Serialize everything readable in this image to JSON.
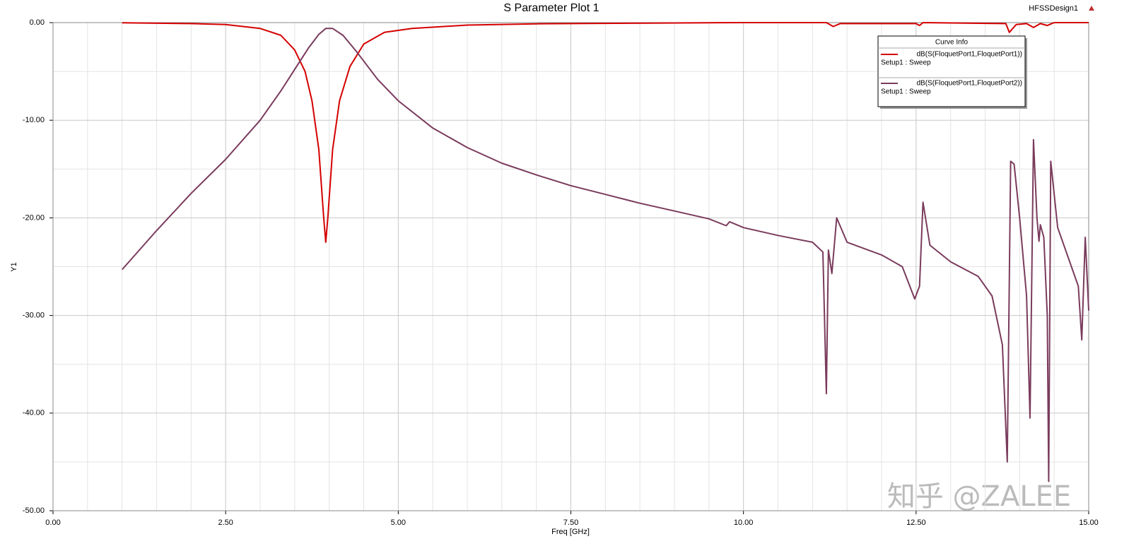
{
  "chart_data": {
    "type": "line",
    "title": "S Parameter Plot 1",
    "design_name": "HFSSDesign1",
    "xlabel": "Freq [GHz]",
    "ylabel": "Y1",
    "legend_title": "Curve Info",
    "legend_position": "top right",
    "watermark": "知乎 @ZALEE",
    "grid": true,
    "xlim": [
      0,
      15
    ],
    "ylim": [
      -50,
      0
    ],
    "xticks": [
      {
        "value": 0,
        "label": "0.00"
      },
      {
        "value": 2.5,
        "label": "2.50"
      },
      {
        "value": 5,
        "label": "5.00"
      },
      {
        "value": 7.5,
        "label": "7.50"
      },
      {
        "value": 10,
        "label": "10.00"
      },
      {
        "value": 12.5,
        "label": "12.50"
      },
      {
        "value": 15,
        "label": "15.00"
      }
    ],
    "yticks": [
      {
        "value": -50,
        "label": "-50.00"
      },
      {
        "value": -40,
        "label": "-40.00"
      },
      {
        "value": -30,
        "label": "-30.00"
      },
      {
        "value": -20,
        "label": "-20.00"
      },
      {
        "value": -10,
        "label": "-10.00"
      },
      {
        "value": 0,
        "label": "0.00"
      }
    ],
    "minor_xticks": [
      0.5,
      1,
      1.5,
      2,
      3,
      3.5,
      4,
      4.5,
      5.5,
      6,
      6.5,
      7,
      8,
      8.5,
      9,
      9.5,
      10.5,
      11,
      11.5,
      12,
      13,
      13.5,
      14,
      14.5
    ],
    "minor_yticks": [
      -45,
      -35,
      -25,
      -15,
      -5
    ],
    "series": [
      {
        "name": "dB(S(FloquetPort1,FloquetPort1))",
        "setup": "Setup1 : Sweep",
        "color": "#d40000",
        "x": [
          1,
          2,
          2.5,
          3,
          3.3,
          3.5,
          3.65,
          3.75,
          3.85,
          3.92,
          3.95,
          3.98,
          4.05,
          4.15,
          4.3,
          4.5,
          4.8,
          5.2,
          6,
          7,
          8.6,
          10,
          11.2,
          11.3,
          11.4,
          12.5,
          12.55,
          12.6,
          13.8,
          13.85,
          13.95,
          14.1,
          14.2,
          14.3,
          14.4,
          14.5,
          15
        ],
        "values": [
          -0.02,
          -0.1,
          -0.2,
          -0.6,
          -1.3,
          -2.8,
          -5,
          -8,
          -13,
          -20,
          -22.5,
          -20,
          -13,
          -8,
          -4.5,
          -2.2,
          -1,
          -0.6,
          -0.25,
          -0.12,
          -0.05,
          0,
          0,
          -0.4,
          -0.1,
          -0.1,
          -0.3,
          0,
          -0.1,
          -1,
          -0.2,
          -0.1,
          -0.5,
          -0.1,
          -0.3,
          0,
          0
        ]
      },
      {
        "name": "dB(S(FloquetPort1,FloquetPort2))",
        "setup": "Setup1 : Sweep",
        "color": "#7a3b5c",
        "x": [
          1,
          1.5,
          2,
          2.5,
          3,
          3.3,
          3.5,
          3.7,
          3.85,
          3.95,
          4.05,
          4.2,
          4.4,
          4.7,
          5,
          5.5,
          6,
          6.5,
          7,
          7.5,
          8,
          8.5,
          9,
          9.5,
          9.75,
          9.8,
          10,
          10.5,
          11,
          11.15,
          11.2,
          11.23,
          11.28,
          11.35,
          11.5,
          12,
          12.3,
          12.48,
          12.55,
          12.6,
          12.7,
          13,
          13.4,
          13.6,
          13.75,
          13.82,
          13.87,
          13.92,
          14,
          14.1,
          14.15,
          14.2,
          14.25,
          14.28,
          14.3,
          14.35,
          14.4,
          14.42,
          14.45,
          14.55,
          14.7,
          14.85,
          14.9,
          14.95,
          15
        ],
        "values": [
          -25.3,
          -21.3,
          -17.5,
          -14,
          -10,
          -7,
          -4.8,
          -2.6,
          -1.2,
          -0.6,
          -0.6,
          -1.3,
          -3,
          -5.8,
          -8,
          -10.8,
          -12.8,
          -14.4,
          -15.6,
          -16.7,
          -17.6,
          -18.5,
          -19.3,
          -20.1,
          -20.8,
          -20.4,
          -21,
          -21.8,
          -22.5,
          -23.5,
          -38,
          -23.3,
          -25.7,
          -20,
          -22.5,
          -23.8,
          -25,
          -28.3,
          -27,
          -18.4,
          -22.8,
          -24.5,
          -26,
          -28,
          -33,
          -45,
          -14.2,
          -14.5,
          -20,
          -28,
          -40.5,
          -12,
          -20,
          -22.4,
          -20.7,
          -22,
          -30,
          -47,
          -14.2,
          -21,
          -24,
          -27,
          -32.5,
          -22,
          -29.5
        ]
      }
    ]
  }
}
